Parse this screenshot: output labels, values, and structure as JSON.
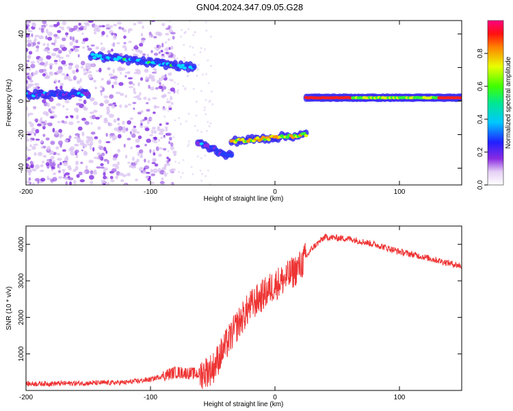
{
  "title": "GN04.2024.347.09.05.G28",
  "chart_data": [
    {
      "type": "heatmap",
      "xlabel": "Height of straight line (km)",
      "ylabel": "Frequency (Hz)",
      "xlim": [
        -200,
        150
      ],
      "ylim": [
        -50,
        48
      ],
      "x_ticks": [
        "-200",
        "-100",
        "0",
        "100"
      ],
      "y_ticks": [
        "40",
        "20",
        "0",
        "-20",
        "-40"
      ],
      "colorbar": {
        "label": "Normalized spectral amplitude",
        "range": [
          0,
          1
        ],
        "ticks": [
          "0.0",
          "0.2",
          "0.4",
          "0.6",
          "0.8"
        ]
      },
      "bands": [
        {
          "x": [
            -200,
            -150
          ],
          "freq": [
            4,
            4
          ],
          "amplitude": 0.3
        },
        {
          "x": [
            -148,
            -65
          ],
          "freq": [
            27,
            20
          ],
          "amplitude": 0.4
        },
        {
          "x": [
            -62,
            -35
          ],
          "freq": [
            -25,
            -33
          ],
          "amplitude": 0.3
        },
        {
          "x": [
            -35,
            25
          ],
          "freq": [
            -24,
            -20
          ],
          "amplitude": 0.8
        },
        {
          "x": [
            25,
            150
          ],
          "freq": [
            2,
            2
          ],
          "amplitude": 0.9
        }
      ]
    },
    {
      "type": "line",
      "xlabel": "Height of straight line (km)",
      "ylabel": "SNR (10 * v/v)",
      "xlim": [
        -200,
        150
      ],
      "ylim": [
        0,
        4500
      ],
      "x_ticks": [
        "-200",
        "-100",
        "0",
        "100"
      ],
      "y_ticks": [
        "1000",
        "2000",
        "3000",
        "4000"
      ],
      "color": "#ee3333",
      "x": [
        -200,
        -150,
        -120,
        -100,
        -80,
        -60,
        -50,
        -40,
        -30,
        -20,
        -10,
        0,
        10,
        20,
        30,
        40,
        60,
        80,
        100,
        120,
        150
      ],
      "y": [
        180,
        200,
        220,
        300,
        500,
        450,
        600,
        1200,
        1800,
        2300,
        2600,
        2900,
        3100,
        3400,
        3900,
        4200,
        4150,
        4000,
        3800,
        3650,
        3400
      ]
    }
  ]
}
